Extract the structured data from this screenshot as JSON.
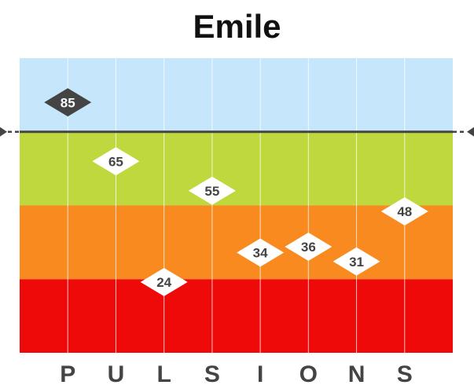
{
  "chart_data": {
    "type": "scatter",
    "title": "Emile",
    "categories": [
      "P",
      "U",
      "L",
      "S",
      "I",
      "O",
      "N",
      "S"
    ],
    "values": [
      85,
      65,
      24,
      55,
      34,
      36,
      31,
      48
    ],
    "ylim": [
      0,
      100
    ],
    "threshold": 75,
    "bands": [
      {
        "from": 0,
        "to": 25,
        "color": "#ef0a0a"
      },
      {
        "from": 25,
        "to": 50,
        "color": "#f98a1f"
      },
      {
        "from": 50,
        "to": 75,
        "color": "#bfd83d"
      },
      {
        "from": 75,
        "to": 100,
        "color": "#c6e7fb"
      }
    ],
    "highlight_above_threshold": {
      "fill": "#444444",
      "text": "#ffffff"
    },
    "default_marker": {
      "fill": "#ffffff",
      "text": "#444444"
    },
    "threshold_line_color": "#444444",
    "gridlines": "vertical",
    "legend": "none"
  }
}
